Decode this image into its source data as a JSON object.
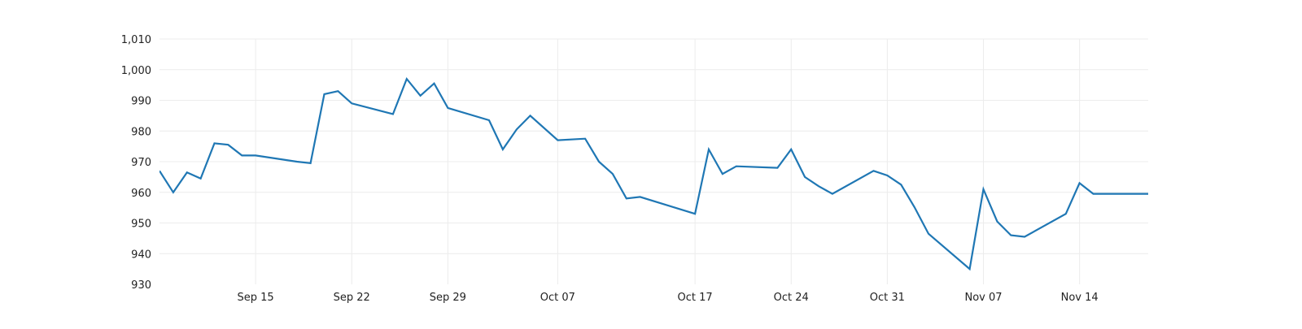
{
  "chart_data": {
    "type": "line",
    "title": "",
    "xlabel": "",
    "ylabel": "",
    "grid": true,
    "legend": "none",
    "ylim": [
      930,
      1010
    ],
    "y_ticks": [
      930,
      940,
      950,
      960,
      970,
      980,
      990,
      1000,
      1010
    ],
    "y_tick_labels": [
      "930",
      "940",
      "950",
      "960",
      "970",
      "980",
      "990",
      "1,000",
      "1,010"
    ],
    "x_ticks": [
      {
        "date": "2023-09-15",
        "label": "Sep 15"
      },
      {
        "date": "2023-09-22",
        "label": "Sep 22"
      },
      {
        "date": "2023-09-29",
        "label": "Sep 29"
      },
      {
        "date": "2023-10-07",
        "label": "Oct 07"
      },
      {
        "date": "2023-10-17",
        "label": "Oct 17"
      },
      {
        "date": "2023-10-24",
        "label": "Oct 24"
      },
      {
        "date": "2023-10-31",
        "label": "Oct 31"
      },
      {
        "date": "2023-11-07",
        "label": "Nov 07"
      },
      {
        "date": "2023-11-14",
        "label": "Nov 14"
      }
    ],
    "series": [
      {
        "color": "#1f77b4",
        "x": [
          "2023-09-08",
          "2023-09-09",
          "2023-09-10",
          "2023-09-11",
          "2023-09-12",
          "2023-09-13",
          "2023-09-14",
          "2023-09-15",
          "2023-09-18",
          "2023-09-19",
          "2023-09-20",
          "2023-09-21",
          "2023-09-22",
          "2023-09-25",
          "2023-09-26",
          "2023-09-27",
          "2023-09-28",
          "2023-09-29",
          "2023-10-02",
          "2023-10-03",
          "2023-10-04",
          "2023-10-05",
          "2023-10-07",
          "2023-10-09",
          "2023-10-10",
          "2023-10-11",
          "2023-10-12",
          "2023-10-13",
          "2023-10-17",
          "2023-10-18",
          "2023-10-19",
          "2023-10-20",
          "2023-10-23",
          "2023-10-24",
          "2023-10-25",
          "2023-10-26",
          "2023-10-27",
          "2023-10-30",
          "2023-10-31",
          "2023-11-01",
          "2023-11-02",
          "2023-11-03",
          "2023-11-06",
          "2023-11-07",
          "2023-11-08",
          "2023-11-09",
          "2023-11-10",
          "2023-11-13",
          "2023-11-14",
          "2023-11-15",
          "2023-11-16",
          "2023-11-17",
          "2023-11-20"
        ],
        "y": [
          967,
          960,
          966.5,
          964.5,
          976,
          975.5,
          972,
          972,
          970,
          969.5,
          992,
          993,
          989,
          985.5,
          997,
          991.5,
          995.5,
          987.5,
          983.5,
          974,
          980.5,
          985,
          977,
          977.5,
          970,
          966,
          958,
          958.5,
          953,
          974,
          966,
          968.5,
          968,
          974,
          965,
          962,
          959.5,
          967,
          965.5,
          962.5,
          955,
          946.5,
          935,
          961,
          950.5,
          946,
          945.5,
          953,
          963,
          959.5,
          959.5,
          959.5,
          959.5
        ]
      }
    ]
  }
}
